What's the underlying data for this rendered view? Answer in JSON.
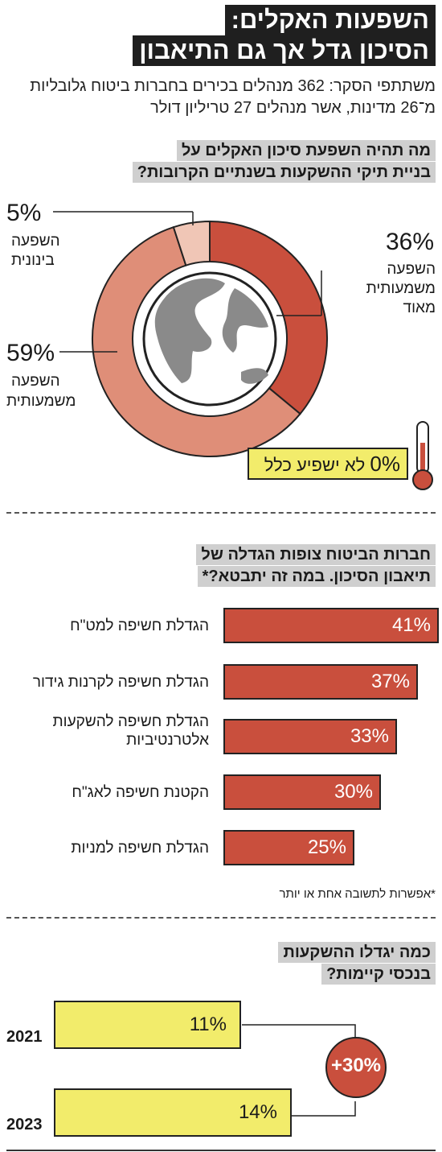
{
  "header": {
    "title_line1": "השפעות האקלים:",
    "title_line2": "הסיכון גדל אך גם התיאבון",
    "intro": "משתתפי הסקר: 362 מנהלים בכירים בחברות ביטוח גלובליות מ־26 מדינות, אשר מנהלים 27 טריליון דולר"
  },
  "section1": {
    "question_line1": "מה תהיה השפעת סיכון האקלים על",
    "question_line2": "בניית תיקי ההשקעות בשנתיים הקרובות?",
    "labels": {
      "very_significant_pct": "36%",
      "very_significant_l1": "השפעה",
      "very_significant_l2": "משמעותית",
      "very_significant_l3": "מאוד",
      "significant_pct": "59%",
      "significant_l1": "השפעה",
      "significant_l2": "משמעותית",
      "moderate_pct": "5%",
      "moderate_l1": "השפעה",
      "moderate_l2": "בינונית",
      "none_pct": "0%",
      "none_text": "לא ישפיע כלל"
    }
  },
  "section2": {
    "question_line1": "חברות הביטוח צופות הגדלה של",
    "question_line2": "תיאבון הסיכון. במה זה יתבטא?*",
    "footnote": "*אפשרות לתשובה אחת או יותר"
  },
  "section3": {
    "question_line1": "כמה יגדלו ההשקעות",
    "question_line2": "בנכסי קיימות?",
    "growth": "+30%"
  },
  "chart_data": [
    {
      "type": "pie",
      "title": "מה תהיה השפעת סיכון האקלים על בניית תיקי ההשקעות בשנתיים הקרובות?",
      "categories": [
        "השפעה משמעותית מאוד",
        "השפעה משמעותית",
        "השפעה בינונית",
        "לא ישפיע כלל"
      ],
      "values": [
        36,
        59,
        5,
        0
      ],
      "colors": [
        "#c94f3d",
        "#df8e78",
        "#f0c6b6",
        "#f2ec6b"
      ]
    },
    {
      "type": "bar",
      "title": "חברות הביטוח צופות הגדלה של תיאבון הסיכון. במה זה יתבטא?*",
      "categories": [
        "הגדלת חשיפה למט\"ח",
        "הגדלת חשיפה לקרנות גידור",
        "הגדלת חשיפה להשקעות אלטרנטיביות",
        "הקטנת חשיפה לאג\"ח",
        "הגדלת חשיפה למניות"
      ],
      "values": [
        41,
        37,
        33,
        30,
        25
      ],
      "value_labels": [
        "41%",
        "37%",
        "33%",
        "30%",
        "25%"
      ],
      "color": "#c94f3d"
    },
    {
      "type": "bar",
      "title": "כמה יגדלו ההשקעות בנכסי קיימות?",
      "categories": [
        "2021",
        "2023"
      ],
      "values": [
        11,
        14
      ],
      "value_labels": [
        "11%",
        "14%"
      ],
      "color": "#f2ec6b"
    }
  ]
}
